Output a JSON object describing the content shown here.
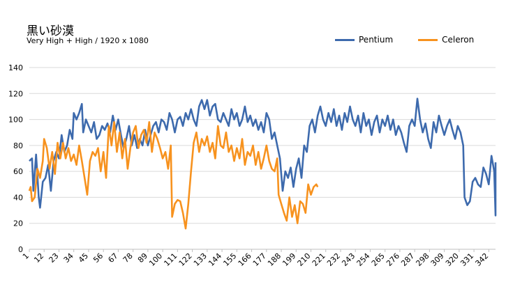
{
  "chart_data": {
    "type": "line",
    "title": "黒い砂漠",
    "subtitle": "Very High + High / 1920 x 1080",
    "ylim": [
      0,
      140
    ],
    "yticks": [
      0,
      20,
      40,
      60,
      80,
      100,
      120,
      140
    ],
    "xlim": [
      1,
      347
    ],
    "xticks": [
      1,
      12,
      23,
      34,
      45,
      56,
      67,
      78,
      89,
      100,
      111,
      122,
      133,
      144,
      155,
      166,
      177,
      188,
      199,
      210,
      221,
      232,
      243,
      254,
      265,
      276,
      287,
      298,
      309,
      320,
      331,
      342
    ],
    "legend_position": "top-right",
    "grid": true,
    "series": [
      {
        "name": "Pentium",
        "color": "#3d6aad",
        "points": [
          [
            1,
            68
          ],
          [
            3,
            70
          ],
          [
            4,
            45
          ],
          [
            6,
            73
          ],
          [
            8,
            40
          ],
          [
            9,
            32
          ],
          [
            11,
            52
          ],
          [
            13,
            55
          ],
          [
            15,
            65
          ],
          [
            17,
            45
          ],
          [
            19,
            68
          ],
          [
            21,
            75
          ],
          [
            23,
            70
          ],
          [
            25,
            88
          ],
          [
            27,
            75
          ],
          [
            29,
            80
          ],
          [
            31,
            92
          ],
          [
            33,
            85
          ],
          [
            34,
            105
          ],
          [
            36,
            100
          ],
          [
            38,
            105
          ],
          [
            40,
            112
          ],
          [
            41,
            90
          ],
          [
            43,
            100
          ],
          [
            45,
            95
          ],
          [
            47,
            90
          ],
          [
            49,
            98
          ],
          [
            51,
            85
          ],
          [
            53,
            88
          ],
          [
            55,
            95
          ],
          [
            57,
            92
          ],
          [
            59,
            97
          ],
          [
            61,
            90
          ],
          [
            63,
            103
          ],
          [
            65,
            92
          ],
          [
            67,
            100
          ],
          [
            69,
            88
          ],
          [
            71,
            78
          ],
          [
            73,
            85
          ],
          [
            75,
            95
          ],
          [
            77,
            80
          ],
          [
            79,
            88
          ],
          [
            81,
            78
          ],
          [
            83,
            85
          ],
          [
            85,
            80
          ],
          [
            87,
            92
          ],
          [
            89,
            80
          ],
          [
            91,
            88
          ],
          [
            93,
            95
          ],
          [
            95,
            98
          ],
          [
            97,
            90
          ],
          [
            99,
            100
          ],
          [
            101,
            98
          ],
          [
            103,
            92
          ],
          [
            105,
            105
          ],
          [
            107,
            100
          ],
          [
            109,
            90
          ],
          [
            111,
            100
          ],
          [
            113,
            102
          ],
          [
            115,
            95
          ],
          [
            117,
            105
          ],
          [
            119,
            100
          ],
          [
            121,
            108
          ],
          [
            123,
            100
          ],
          [
            125,
            95
          ],
          [
            127,
            110
          ],
          [
            129,
            115
          ],
          [
            131,
            108
          ],
          [
            133,
            115
          ],
          [
            135,
            103
          ],
          [
            137,
            110
          ],
          [
            139,
            112
          ],
          [
            141,
            100
          ],
          [
            143,
            98
          ],
          [
            145,
            105
          ],
          [
            147,
            100
          ],
          [
            149,
            95
          ],
          [
            151,
            108
          ],
          [
            153,
            100
          ],
          [
            155,
            105
          ],
          [
            157,
            95
          ],
          [
            159,
            100
          ],
          [
            161,
            110
          ],
          [
            163,
            98
          ],
          [
            165,
            103
          ],
          [
            167,
            95
          ],
          [
            169,
            100
          ],
          [
            171,
            92
          ],
          [
            173,
            98
          ],
          [
            175,
            90
          ],
          [
            177,
            105
          ],
          [
            179,
            100
          ],
          [
            181,
            85
          ],
          [
            183,
            90
          ],
          [
            185,
            80
          ],
          [
            187,
            70
          ],
          [
            189,
            45
          ],
          [
            191,
            60
          ],
          [
            193,
            55
          ],
          [
            195,
            63
          ],
          [
            197,
            48
          ],
          [
            199,
            62
          ],
          [
            201,
            70
          ],
          [
            203,
            55
          ],
          [
            205,
            80
          ],
          [
            207,
            75
          ],
          [
            209,
            95
          ],
          [
            211,
            100
          ],
          [
            213,
            90
          ],
          [
            215,
            103
          ],
          [
            217,
            110
          ],
          [
            219,
            100
          ],
          [
            221,
            95
          ],
          [
            223,
            105
          ],
          [
            225,
            98
          ],
          [
            227,
            108
          ],
          [
            229,
            95
          ],
          [
            231,
            103
          ],
          [
            233,
            92
          ],
          [
            235,
            105
          ],
          [
            237,
            98
          ],
          [
            239,
            110
          ],
          [
            241,
            100
          ],
          [
            243,
            95
          ],
          [
            245,
            103
          ],
          [
            247,
            90
          ],
          [
            249,
            105
          ],
          [
            251,
            95
          ],
          [
            253,
            100
          ],
          [
            255,
            88
          ],
          [
            257,
            98
          ],
          [
            259,
            103
          ],
          [
            261,
            90
          ],
          [
            263,
            100
          ],
          [
            265,
            95
          ],
          [
            267,
            103
          ],
          [
            269,
            92
          ],
          [
            271,
            100
          ],
          [
            273,
            88
          ],
          [
            275,
            95
          ],
          [
            277,
            90
          ],
          [
            279,
            82
          ],
          [
            281,
            75
          ],
          [
            283,
            95
          ],
          [
            285,
            100
          ],
          [
            287,
            95
          ],
          [
            289,
            116
          ],
          [
            291,
            100
          ],
          [
            293,
            90
          ],
          [
            295,
            97
          ],
          [
            297,
            85
          ],
          [
            299,
            78
          ],
          [
            301,
            98
          ],
          [
            303,
            90
          ],
          [
            305,
            103
          ],
          [
            307,
            95
          ],
          [
            309,
            88
          ],
          [
            311,
            95
          ],
          [
            313,
            100
          ],
          [
            315,
            92
          ],
          [
            317,
            85
          ],
          [
            319,
            95
          ],
          [
            321,
            90
          ],
          [
            323,
            80
          ],
          [
            324,
            40
          ],
          [
            326,
            34
          ],
          [
            328,
            37
          ],
          [
            330,
            52
          ],
          [
            332,
            55
          ],
          [
            334,
            50
          ],
          [
            336,
            48
          ],
          [
            338,
            63
          ],
          [
            340,
            58
          ],
          [
            342,
            50
          ],
          [
            344,
            72
          ],
          [
            346,
            60
          ],
          [
            347,
            26
          ],
          [
            347,
            67
          ]
        ]
      },
      {
        "name": "Celeron",
        "color": "#f7921e",
        "points": [
          [
            1,
            45
          ],
          [
            2,
            48
          ],
          [
            3,
            37
          ],
          [
            5,
            40
          ],
          [
            7,
            62
          ],
          [
            9,
            55
          ],
          [
            11,
            68
          ],
          [
            12,
            85
          ],
          [
            14,
            78
          ],
          [
            16,
            62
          ],
          [
            18,
            75
          ],
          [
            20,
            58
          ],
          [
            22,
            82
          ],
          [
            24,
            70
          ],
          [
            26,
            82
          ],
          [
            28,
            70
          ],
          [
            30,
            78
          ],
          [
            32,
            68
          ],
          [
            34,
            73
          ],
          [
            36,
            65
          ],
          [
            38,
            80
          ],
          [
            40,
            68
          ],
          [
            42,
            55
          ],
          [
            44,
            42
          ],
          [
            46,
            68
          ],
          [
            48,
            75
          ],
          [
            50,
            72
          ],
          [
            52,
            78
          ],
          [
            54,
            60
          ],
          [
            56,
            75
          ],
          [
            58,
            55
          ],
          [
            60,
            95
          ],
          [
            62,
            80
          ],
          [
            64,
            98
          ],
          [
            66,
            75
          ],
          [
            68,
            90
          ],
          [
            70,
            70
          ],
          [
            72,
            85
          ],
          [
            74,
            62
          ],
          [
            76,
            78
          ],
          [
            78,
            90
          ],
          [
            80,
            95
          ],
          [
            82,
            78
          ],
          [
            84,
            88
          ],
          [
            86,
            92
          ],
          [
            88,
            82
          ],
          [
            90,
            98
          ],
          [
            92,
            75
          ],
          [
            94,
            90
          ],
          [
            96,
            85
          ],
          [
            98,
            78
          ],
          [
            100,
            70
          ],
          [
            102,
            75
          ],
          [
            104,
            62
          ],
          [
            106,
            80
          ],
          [
            107,
            25
          ],
          [
            109,
            35
          ],
          [
            111,
            38
          ],
          [
            113,
            37
          ],
          [
            115,
            28
          ],
          [
            117,
            16
          ],
          [
            119,
            35
          ],
          [
            121,
            60
          ],
          [
            123,
            82
          ],
          [
            125,
            90
          ],
          [
            127,
            75
          ],
          [
            129,
            85
          ],
          [
            131,
            80
          ],
          [
            133,
            87
          ],
          [
            135,
            75
          ],
          [
            137,
            82
          ],
          [
            139,
            70
          ],
          [
            141,
            95
          ],
          [
            143,
            80
          ],
          [
            145,
            78
          ],
          [
            147,
            90
          ],
          [
            149,
            75
          ],
          [
            151,
            80
          ],
          [
            153,
            68
          ],
          [
            155,
            78
          ],
          [
            157,
            70
          ],
          [
            159,
            85
          ],
          [
            161,
            65
          ],
          [
            163,
            75
          ],
          [
            165,
            72
          ],
          [
            167,
            80
          ],
          [
            169,
            65
          ],
          [
            171,
            75
          ],
          [
            173,
            62
          ],
          [
            175,
            70
          ],
          [
            177,
            80
          ],
          [
            179,
            68
          ],
          [
            181,
            62
          ],
          [
            183,
            60
          ],
          [
            185,
            70
          ],
          [
            186,
            42
          ],
          [
            188,
            35
          ],
          [
            190,
            28
          ],
          [
            192,
            22
          ],
          [
            194,
            40
          ],
          [
            196,
            25
          ],
          [
            198,
            34
          ],
          [
            200,
            20
          ],
          [
            202,
            37
          ],
          [
            204,
            35
          ],
          [
            206,
            28
          ],
          [
            208,
            50
          ],
          [
            210,
            42
          ],
          [
            212,
            48
          ],
          [
            214,
            50
          ],
          [
            215,
            48
          ]
        ]
      }
    ]
  }
}
